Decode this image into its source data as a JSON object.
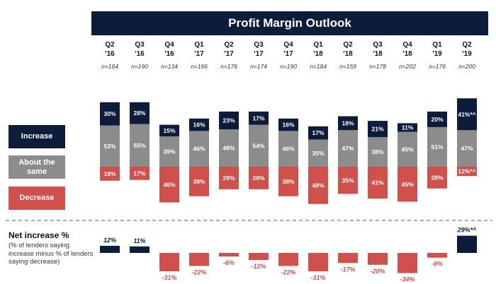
{
  "title": "Profit Margin Outlook",
  "legend": {
    "increase": "Increase",
    "same": "About the same",
    "decrease": "Decrease"
  },
  "net": {
    "title": "Net increase %",
    "description": "(% of lenders saying increase minus % of lenders saying decrease)"
  },
  "colors": {
    "increase": "#0c1c3a",
    "same": "#8c8c8c",
    "decrease": "#d0504b",
    "navy": "#0c1c3a"
  },
  "chart_data": {
    "type": "bar",
    "title": "Profit Margin Outlook",
    "quarter_labels": [
      "Q2",
      "Q3",
      "Q4",
      "Q1",
      "Q2",
      "Q3",
      "Q4",
      "Q1",
      "Q2",
      "Q3",
      "Q4",
      "Q1",
      "Q2"
    ],
    "year_labels": [
      "'16",
      "'16",
      "'16",
      "'17",
      "'17",
      "'17",
      "'17",
      "'18",
      "'18",
      "'18",
      "'18",
      "'19",
      "'19"
    ],
    "sample_sizes": [
      "n=164",
      "n=190",
      "n=134",
      "n=166",
      "n=176",
      "n=174",
      "n=190",
      "n=184",
      "n=159",
      "n=178",
      "n=202",
      "n=176",
      "n=200"
    ],
    "series": [
      {
        "name": "Increase",
        "values": [
          30,
          28,
          15,
          16,
          23,
          17,
          16,
          17,
          18,
          21,
          11,
          20,
          41
        ],
        "labels": [
          "30%",
          "28%",
          "15%",
          "16%",
          "23%",
          "17%",
          "16%",
          "17%",
          "18%",
          "21%",
          "11%",
          "20%",
          "41%*^"
        ]
      },
      {
        "name": "About the same",
        "values": [
          53,
          55,
          39,
          46,
          48,
          54,
          46,
          35,
          47,
          38,
          45,
          51,
          47
        ],
        "labels": [
          "53%",
          "55%",
          "39%",
          "46%",
          "48%",
          "54%",
          "46%",
          "35%",
          "47%",
          "38%",
          "45%",
          "51%",
          "47%"
        ]
      },
      {
        "name": "Decrease",
        "values": [
          18,
          17,
          46,
          38,
          29,
          29,
          38,
          48,
          35,
          41,
          45,
          28,
          12
        ],
        "labels": [
          "18%",
          "17%",
          "46%",
          "38%",
          "29%",
          "29%",
          "38%",
          "48%",
          "35%",
          "41%",
          "45%",
          "28%",
          "12%*^"
        ]
      }
    ],
    "net_increase": {
      "values": [
        12,
        11,
        -31,
        -22,
        -6,
        -12,
        -22,
        -31,
        -17,
        -20,
        -34,
        -8,
        29
      ],
      "labels": [
        "12%",
        "11%",
        "-31%",
        "-22%",
        "-6%",
        "-12%",
        "-22%",
        "-31%",
        "-17%",
        "-20%",
        "-34%",
        "-8%",
        "29%*^"
      ]
    }
  }
}
